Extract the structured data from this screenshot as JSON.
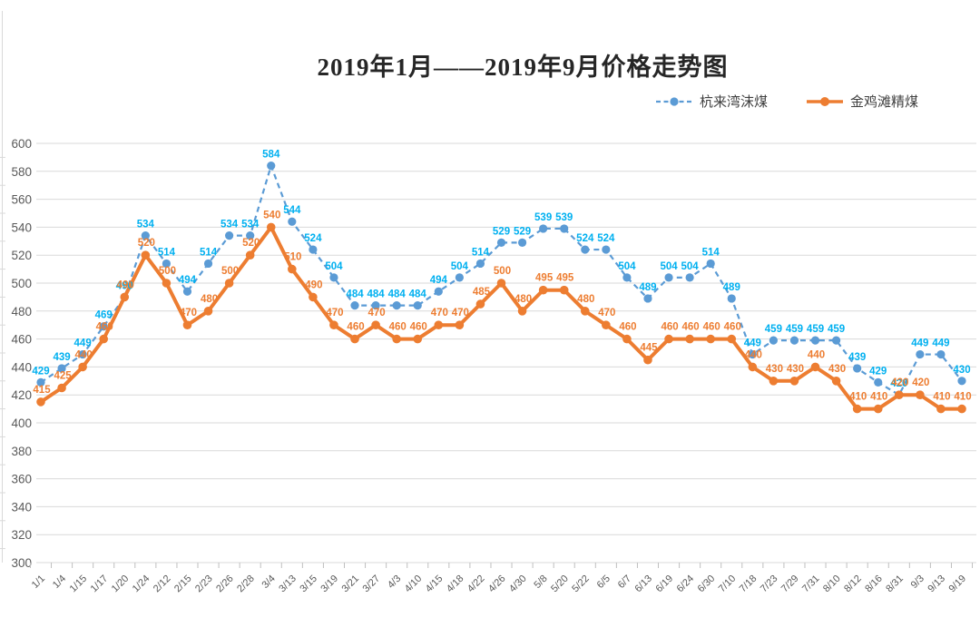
{
  "title": "2019年1月——2019年9月价格走势图",
  "legend": [
    {
      "label": "杭来湾沫煤",
      "color": "#5B9BD5",
      "style": "dashed"
    },
    {
      "label": "金鸡滩精煤",
      "color": "#ED7D31",
      "style": "solid"
    }
  ],
  "axis": {
    "y_ticks": [
      600,
      580,
      560,
      540,
      520,
      500,
      480,
      460,
      440,
      420,
      400,
      380,
      360,
      340,
      320,
      300
    ],
    "text_color": "#595959",
    "grid_color": "#D9D9D9"
  },
  "chart_data": {
    "type": "line",
    "title": "2019年1月——2019年9月价格走势图",
    "xlabel": "",
    "ylabel": "",
    "ylim": [
      300,
      600
    ],
    "ytick_step": 20,
    "grid": true,
    "legend_position": "top-right",
    "categories": [
      "1/1",
      "1/4",
      "1/15",
      "1/17",
      "1/20",
      "1/24",
      "2/12",
      "2/15",
      "2/23",
      "2/26",
      "2/28",
      "3/4",
      "3/13",
      "3/15",
      "3/19",
      "3/21",
      "3/27",
      "4/3",
      "4/10",
      "4/15",
      "4/18",
      "4/22",
      "4/26",
      "4/30",
      "5/8",
      "5/20",
      "5/22",
      "6/5",
      "6/7",
      "6/13",
      "6/19",
      "6/24",
      "6/30",
      "7/10",
      "7/18",
      "7/23",
      "7/29",
      "7/31",
      "8/10",
      "8/12",
      "8/16",
      "8/31",
      "9/3",
      "9/13",
      "9/19"
    ],
    "series": [
      {
        "name": "杭来湾沫煤",
        "line_color": "#5B9BD5",
        "label_color": "#00B0F0",
        "dash": true,
        "values": [
          429,
          439,
          449,
          469,
          490,
          534,
          514,
          494,
          514,
          534,
          534,
          584,
          544,
          524,
          504,
          484,
          484,
          484,
          484,
          494,
          504,
          514,
          529,
          529,
          539,
          539,
          524,
          524,
          504,
          489,
          504,
          504,
          514,
          489,
          449,
          459,
          459,
          459,
          459,
          439,
          429,
          420,
          449,
          449,
          430
        ]
      },
      {
        "name": "金鸡滩精煤",
        "line_color": "#ED7D31",
        "label_color": "#ED7D31",
        "dash": false,
        "values": [
          415,
          425,
          440,
          460,
          490,
          520,
          500,
          470,
          480,
          500,
          520,
          540,
          510,
          490,
          470,
          460,
          470,
          460,
          460,
          470,
          470,
          485,
          500,
          480,
          495,
          495,
          480,
          470,
          460,
          445,
          460,
          460,
          460,
          460,
          440,
          430,
          430,
          440,
          430,
          410,
          410,
          420,
          420,
          410,
          410
        ]
      }
    ]
  }
}
